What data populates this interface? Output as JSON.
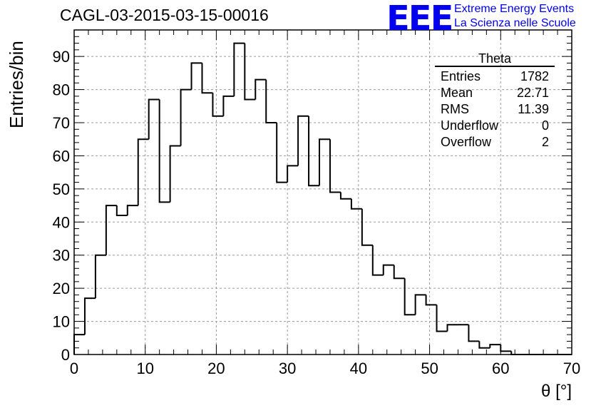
{
  "title": "CAGL-03-2015-03-15-00016",
  "logo": {
    "mark": "EEE",
    "line1": "Extreme Energy Events",
    "line2": "La Scienza nelle Scuole"
  },
  "stats_box": {
    "title": "Theta",
    "rows": [
      {
        "label": "Entries",
        "value": "1782"
      },
      {
        "label": "Mean",
        "value": "22.71"
      },
      {
        "label": "RMS",
        "value": "11.39"
      },
      {
        "label": "Underflow",
        "value": "0"
      },
      {
        "label": "Overflow",
        "value": "2"
      }
    ]
  },
  "chart_data": {
    "type": "histogram",
    "title": "CAGL-03-2015-03-15-00016",
    "xlabel": "θ [°]",
    "ylabel": "Entries/bin",
    "xlim": [
      0,
      70
    ],
    "ylim": [
      0,
      98
    ],
    "grid": true,
    "x_ticks": [
      0,
      10,
      20,
      30,
      40,
      50,
      60,
      70
    ],
    "y_ticks": [
      0,
      10,
      20,
      30,
      40,
      50,
      60,
      70,
      80,
      90
    ],
    "bin_width": 1.5,
    "bin_edges_start": 0,
    "values": [
      6,
      17,
      30,
      45,
      42,
      45,
      65,
      77,
      46,
      63,
      80,
      88,
      79,
      72,
      78,
      94,
      77,
      83,
      70,
      52,
      57,
      72,
      51,
      65,
      49,
      47,
      44,
      33,
      24,
      27,
      23,
      12,
      18,
      15,
      7,
      9,
      9,
      4,
      2,
      3,
      1,
      0,
      0,
      0,
      0,
      0,
      0
    ]
  },
  "colors": {
    "line": "#000000",
    "grid": "#9a9a9a",
    "logo": "#0000ee"
  }
}
